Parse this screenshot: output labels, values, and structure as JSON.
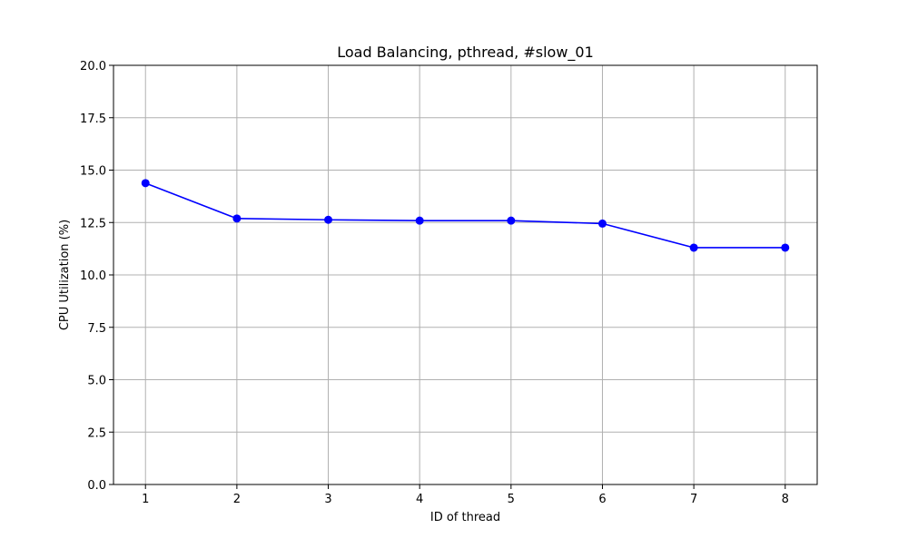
{
  "chart_data": {
    "type": "line",
    "title": "Load Balancing, pthread, #slow_01",
    "xlabel": "ID of thread",
    "ylabel": "CPU Utilization (%)",
    "x": [
      1,
      2,
      3,
      4,
      5,
      6,
      7,
      8
    ],
    "xticks": [
      "1",
      "2",
      "3",
      "4",
      "5",
      "6",
      "7",
      "8"
    ],
    "xlim": [
      0.65,
      8.35
    ],
    "ylim": [
      0,
      20
    ],
    "yticks": [
      "0.0",
      "2.5",
      "5.0",
      "7.5",
      "10.0",
      "12.5",
      "15.0",
      "17.5",
      "20.0"
    ],
    "series": [
      {
        "values": [
          14.38,
          12.69,
          12.63,
          12.59,
          12.59,
          12.45,
          11.3,
          11.3
        ],
        "color": "#0000ff",
        "marker": "circle"
      }
    ],
    "grid": true,
    "legend": "none"
  }
}
